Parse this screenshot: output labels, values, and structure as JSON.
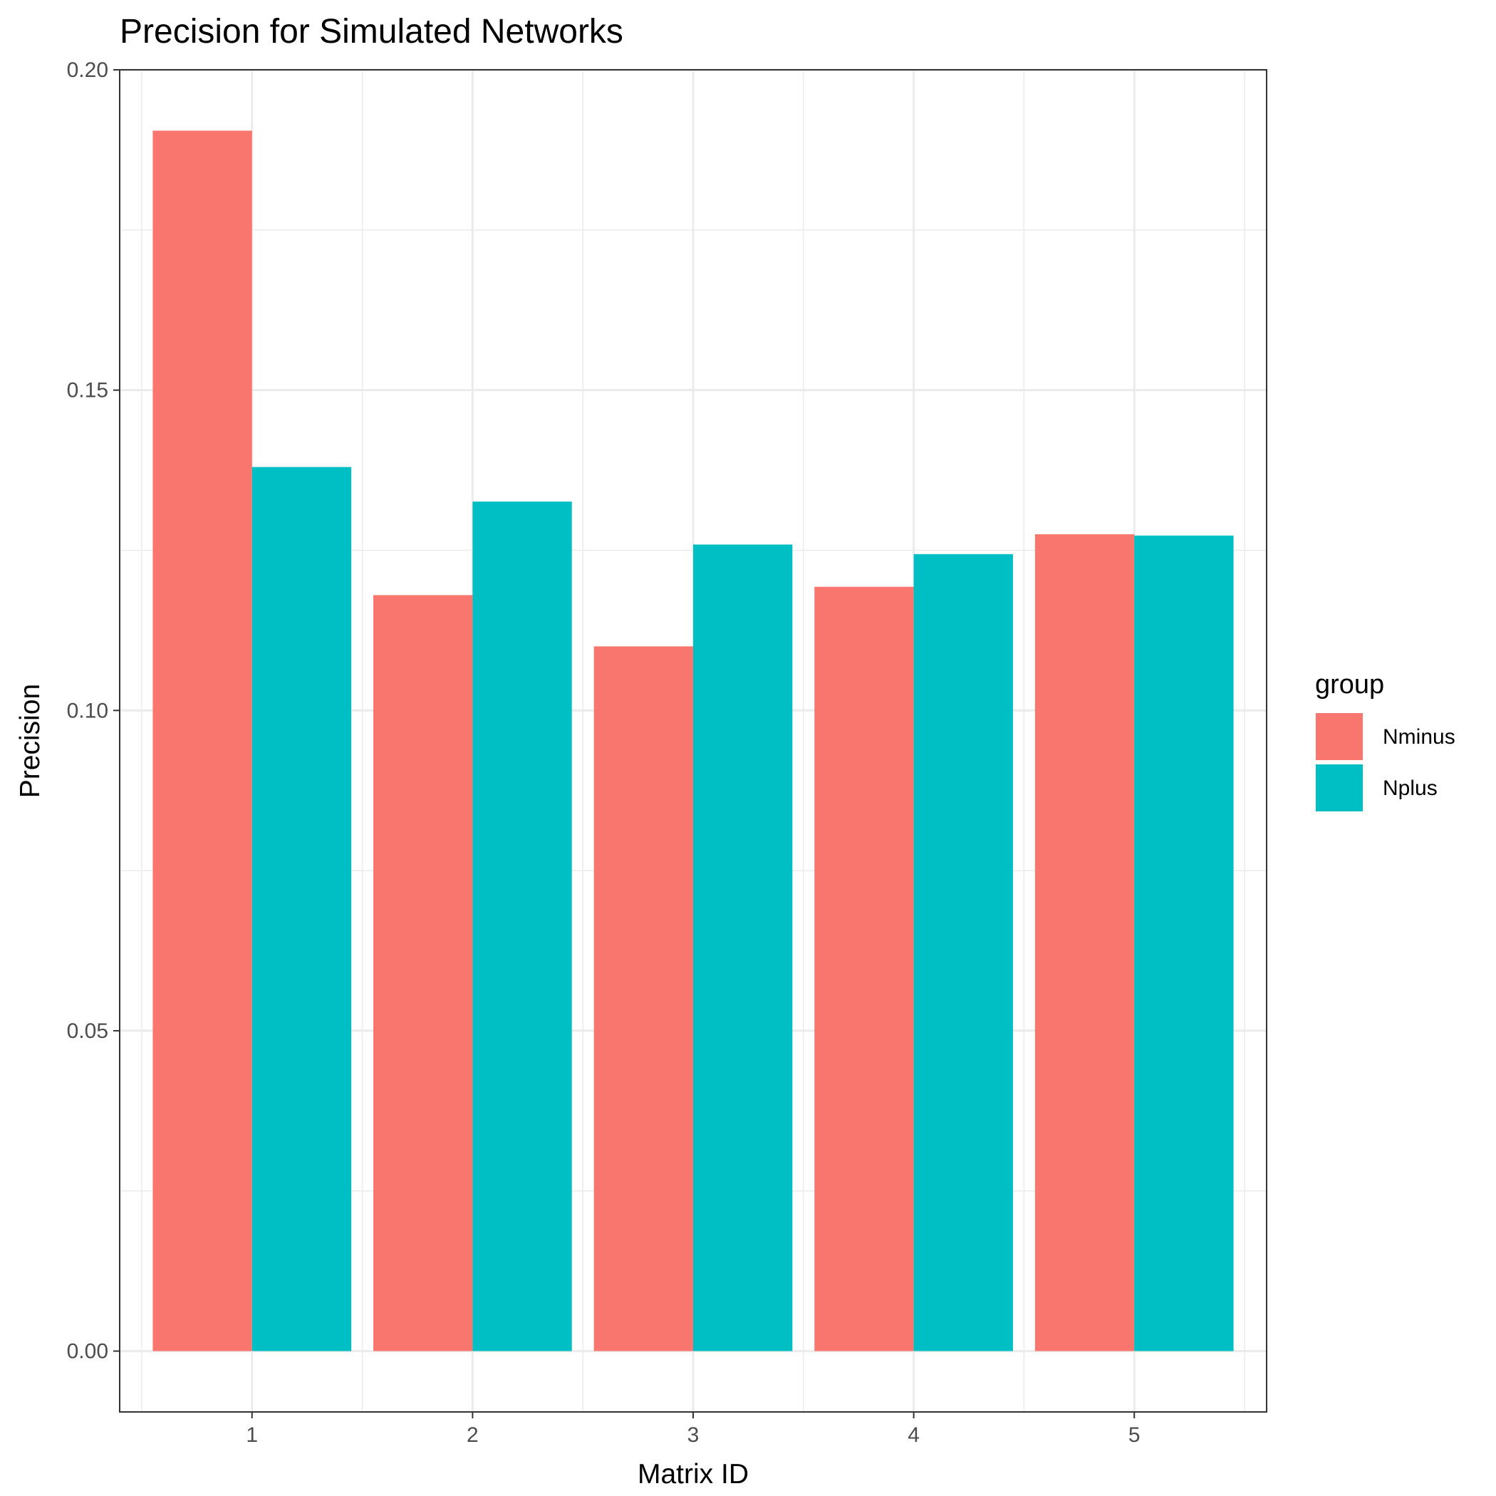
{
  "chart_data": {
    "type": "bar",
    "title": "Precision for Simulated Networks",
    "xlabel": "Matrix ID",
    "ylabel": "Precision",
    "categories": [
      "1",
      "2",
      "3",
      "4",
      "5"
    ],
    "series": [
      {
        "name": "Nminus",
        "color": "#F8766D",
        "values": [
          0.1905,
          0.118,
          0.11,
          0.1193,
          0.1275
        ]
      },
      {
        "name": "Nplus",
        "color": "#00BFC4",
        "values": [
          0.138,
          0.1326,
          0.1259,
          0.1244,
          0.1273
        ]
      }
    ],
    "ylim": [
      -0.0095,
      0.2
    ],
    "yticks": [
      0.0,
      0.05,
      0.1,
      0.15,
      0.2
    ],
    "ytick_labels": [
      "0.00",
      "0.05",
      "0.10",
      "0.15",
      "0.20"
    ],
    "grid": true,
    "legend": {
      "title": "group",
      "position": "right"
    }
  }
}
